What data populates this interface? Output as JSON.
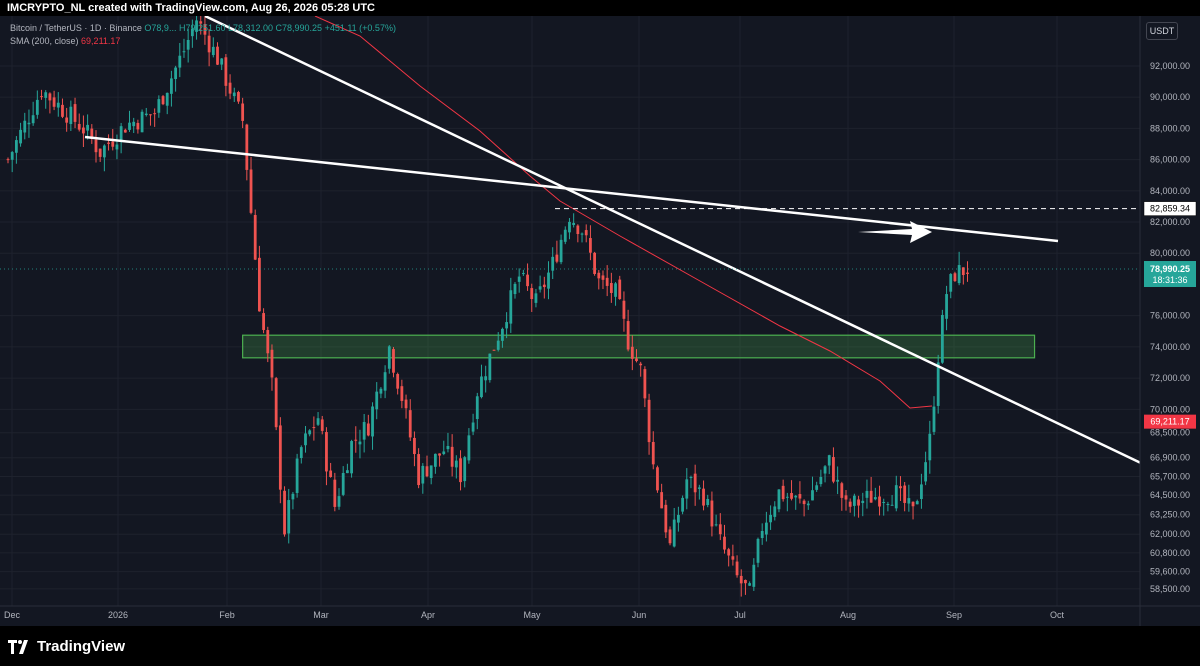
{
  "header": {
    "text": "IMCRYPTO_NL created with TradingView.com, Aug 26, 2026 05:28 UTC"
  },
  "legend": {
    "symbol": "Bitcoin / TetherUS · 1D · Binance",
    "ohlc": "O78,9... H79,251.60 L78,312.00 C78,990.25 +451.11 (+0.57%)",
    "sma_label": "SMA (200, close)",
    "sma_value": "69,211.17"
  },
  "currency": "USDT",
  "footer": {
    "brand": "TradingView"
  },
  "colors": {
    "background": "#131722",
    "up": "#26a69a",
    "down": "#ef5350",
    "sma": "#f23645",
    "zone": "#4caf50",
    "trendline": "#ffffff"
  },
  "chart_data": {
    "type": "candlestick",
    "timeframe": "1D",
    "ylim": [
      57400,
      95200
    ],
    "x_ticks": [
      "Dec",
      "2026",
      "Feb",
      "Mar",
      "Apr",
      "May",
      "Jun",
      "Jul",
      "Aug",
      "Sep",
      "Oct"
    ],
    "y_ticks": [
      "92,000.00",
      "90,000.00",
      "88,000.00",
      "86,000.00",
      "84,000.00",
      "82,000.00",
      "80,000.00",
      "76,000.00",
      "74,000.00",
      "72,000.00",
      "70,000.00",
      "68,500.00",
      "66,900.00",
      "65,700.00",
      "64,500.00",
      "63,250.00",
      "62,000.00",
      "60,800.00",
      "59,600.00",
      "58,500.00"
    ],
    "y_tick_values": [
      92000,
      90000,
      88000,
      86000,
      84000,
      82000,
      80000,
      76000,
      74000,
      72000,
      70000,
      68500,
      66900,
      65700,
      64500,
      63250,
      62000,
      60800,
      59600,
      58500
    ],
    "price_labels": [
      {
        "text": "82,859.34",
        "value": 82859.34,
        "kind": "dashed"
      },
      {
        "text": "78,990.25",
        "value": 78990.25,
        "countdown": "18:31:36",
        "kind": "last"
      },
      {
        "text": "69,211.17",
        "value": 69211.17,
        "kind": "sma"
      }
    ],
    "candles_close_path": [
      [
        0,
        86000
      ],
      [
        8,
        90500
      ],
      [
        18,
        88000
      ],
      [
        22,
        86500
      ],
      [
        28,
        88200
      ],
      [
        35,
        89000
      ],
      [
        42,
        93000
      ],
      [
        45,
        95000
      ],
      [
        50,
        92500
      ],
      [
        56,
        88500
      ],
      [
        60,
        76800
      ],
      [
        63,
        71500
      ],
      [
        66,
        62300
      ],
      [
        70,
        67500
      ],
      [
        74,
        69500
      ],
      [
        78,
        63800
      ],
      [
        82,
        67800
      ],
      [
        86,
        69000
      ],
      [
        91,
        74000
      ],
      [
        94,
        70800
      ],
      [
        98,
        65700
      ],
      [
        104,
        67400
      ],
      [
        108,
        65800
      ],
      [
        112,
        71200
      ],
      [
        118,
        75500
      ],
      [
        122,
        78500
      ],
      [
        126,
        76800
      ],
      [
        130,
        79300
      ],
      [
        134,
        82500
      ],
      [
        137,
        81500
      ],
      [
        141,
        78200
      ],
      [
        145,
        77400
      ],
      [
        148,
        74400
      ],
      [
        151,
        72500
      ],
      [
        154,
        66400
      ],
      [
        158,
        61200
      ],
      [
        162,
        65500
      ],
      [
        166,
        64500
      ],
      [
        170,
        61500
      ],
      [
        174,
        59200
      ],
      [
        177,
        58200
      ],
      [
        180,
        62500
      ],
      [
        184,
        64700
      ],
      [
        190,
        63900
      ],
      [
        196,
        66600
      ],
      [
        200,
        63700
      ],
      [
        206,
        64400
      ],
      [
        212,
        64600
      ],
      [
        216,
        63300
      ],
      [
        220,
        68000
      ],
      [
        222,
        73500
      ],
      [
        224,
        77500
      ],
      [
        226,
        78700
      ],
      [
        229,
        78990
      ]
    ],
    "annotations": [
      {
        "type": "zone",
        "from": 73300,
        "to": 74750,
        "x_range": [
          56,
          245
        ]
      },
      {
        "type": "trendline",
        "name": "descending-short"
      },
      {
        "type": "trendline",
        "name": "descending-long"
      },
      {
        "type": "arrow",
        "name": "retest-arrow"
      }
    ],
    "sma": {
      "length": 200,
      "value": 69211.17
    }
  }
}
